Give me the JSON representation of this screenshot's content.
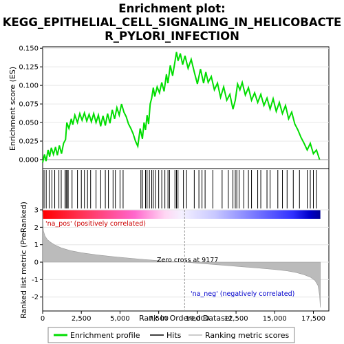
{
  "figure": {
    "title_line1": "Enrichment plot:",
    "title_line2": "KEGG_EPITHELIAL_CELL_SIGNALING_IN_HELICOBACTE",
    "title_line3": "R_PYLORI_INFECTION"
  },
  "colors": {
    "profile": "#00dd00",
    "hits": "#000000",
    "metric_fill": "#bbbbbb",
    "pos_label": "#cc0000",
    "neg_label": "#0000cc",
    "grid": "#e6e6e6"
  },
  "chart_data": [
    {
      "type": "line",
      "name": "enrichment-profile",
      "ylabel": "Enrichment score (ES)",
      "xlim": [
        0,
        18500
      ],
      "ylim": [
        -0.012,
        0.152
      ],
      "yticks": [
        0.0,
        0.025,
        0.05,
        0.075,
        0.1,
        0.125,
        0.15
      ],
      "ytick_labels": [
        "0.000",
        "0.025",
        "0.050",
        "0.075",
        "0.100",
        "0.125",
        "0.150"
      ],
      "x": [
        0,
        120,
        220,
        350,
        450,
        560,
        700,
        830,
        950,
        1080,
        1220,
        1350,
        1480,
        1560,
        1700,
        1850,
        1950,
        2080,
        2250,
        2400,
        2550,
        2700,
        2850,
        3000,
        3150,
        3300,
        3450,
        3600,
        3750,
        3900,
        4050,
        4200,
        4350,
        4500,
        4650,
        4800,
        4950,
        5100,
        5250,
        5400,
        5550,
        5700,
        5850,
        6000,
        6150,
        6300,
        6450,
        6550,
        6650,
        6750,
        6850,
        6950,
        7050,
        7150,
        7250,
        7400,
        7550,
        7700,
        7850,
        8000,
        8100,
        8250,
        8400,
        8550,
        8650,
        8750,
        8900,
        9050,
        9200,
        9400,
        9600,
        9800,
        10000,
        10200,
        10400,
        10550,
        10700,
        10900,
        11100,
        11300,
        11500,
        11700,
        11900,
        12100,
        12300,
        12450,
        12600,
        12750,
        12900,
        13100,
        13300,
        13500,
        13700,
        13900,
        14100,
        14300,
        14500,
        14700,
        14900,
        15100,
        15300,
        15500,
        15700,
        15900,
        16100,
        16300,
        16500,
        16700,
        16900,
        17100,
        17300,
        17500,
        17700,
        17900
      ],
      "values": [
        -0.004,
        0.007,
        -0.002,
        0.013,
        0.004,
        0.016,
        0.007,
        0.017,
        0.006,
        0.019,
        0.008,
        0.022,
        0.027,
        0.05,
        0.042,
        0.055,
        0.047,
        0.06,
        0.05,
        0.062,
        0.053,
        0.063,
        0.052,
        0.061,
        0.051,
        0.062,
        0.05,
        0.06,
        0.045,
        0.059,
        0.046,
        0.062,
        0.049,
        0.067,
        0.055,
        0.07,
        0.06,
        0.075,
        0.064,
        0.058,
        0.048,
        0.042,
        0.035,
        0.025,
        0.018,
        0.042,
        0.028,
        0.05,
        0.04,
        0.06,
        0.048,
        0.075,
        0.083,
        0.097,
        0.085,
        0.098,
        0.09,
        0.104,
        0.092,
        0.115,
        0.103,
        0.127,
        0.113,
        0.132,
        0.145,
        0.133,
        0.143,
        0.128,
        0.14,
        0.123,
        0.135,
        0.118,
        0.102,
        0.122,
        0.103,
        0.118,
        0.104,
        0.112,
        0.094,
        0.103,
        0.084,
        0.098,
        0.08,
        0.088,
        0.068,
        0.08,
        0.102,
        0.094,
        0.104,
        0.087,
        0.097,
        0.08,
        0.09,
        0.077,
        0.088,
        0.073,
        0.083,
        0.068,
        0.082,
        0.065,
        0.077,
        0.062,
        0.073,
        0.055,
        0.064,
        0.048,
        0.04,
        0.03,
        0.022,
        0.013,
        0.022,
        0.008,
        0.013,
        0.0
      ]
    },
    {
      "type": "scatter",
      "name": "hits",
      "x": [
        90,
        230,
        420,
        600,
        780,
        1050,
        1200,
        1450,
        1520,
        1580,
        1650,
        1900,
        2250,
        2500,
        2700,
        2900,
        3100,
        3450,
        3750,
        4050,
        4250,
        4550,
        4700,
        5000,
        5200,
        6350,
        6450,
        6650,
        6750,
        6900,
        7050,
        7150,
        7300,
        7500,
        7700,
        7900,
        8100,
        8200,
        8550,
        8650,
        8750,
        9100,
        9300,
        9800,
        10100,
        10300,
        10500,
        11000,
        11600,
        12000,
        12300,
        12450,
        12550,
        12700,
        13000,
        13300,
        13500,
        13900,
        14100,
        14500,
        14700,
        15200,
        15500,
        15800,
        16200,
        16600,
        17100,
        17300,
        17500,
        17700
      ]
    },
    {
      "type": "area",
      "name": "ranked-list-metric",
      "xlabel": "Rank in Ordered Dataset",
      "ylabel": "Ranked list metric (PreRanked)",
      "xlim": [
        0,
        18500
      ],
      "ylim": [
        -2.8,
        3.0
      ],
      "yticks": [
        -2,
        -1,
        0,
        1,
        2,
        3
      ],
      "xticks": [
        0,
        2500,
        5000,
        7500,
        10000,
        12500,
        15000,
        17500
      ],
      "xtick_labels": [
        "0",
        "2,500",
        "5,000",
        "7,500",
        "10,000",
        "12,500",
        "15,000",
        "17,500"
      ],
      "x": [
        0,
        50,
        150,
        300,
        500,
        800,
        1200,
        1800,
        2500,
        3500,
        4500,
        5500,
        6500,
        7500,
        8500,
        9177,
        10000,
        11000,
        12000,
        13000,
        14000,
        15000,
        15800,
        16400,
        16900,
        17300,
        17600,
        17800,
        17900,
        17950
      ],
      "values": [
        2.9,
        1.8,
        1.5,
        1.3,
        1.15,
        0.98,
        0.82,
        0.66,
        0.54,
        0.42,
        0.32,
        0.24,
        0.16,
        0.09,
        0.03,
        0.0,
        -0.06,
        -0.13,
        -0.2,
        -0.27,
        -0.34,
        -0.42,
        -0.5,
        -0.6,
        -0.72,
        -0.86,
        -1.05,
        -1.35,
        -1.9,
        -2.6
      ],
      "zero_cross_label": "Zero cross at 9177",
      "zero_cross_x": 9177,
      "pos_label": "'na_pos' (positively correlated)",
      "neg_label": "'na_neg' (negatively correlated)"
    }
  ],
  "legend": {
    "items": [
      {
        "label": "Enrichment profile",
        "kind": "profile"
      },
      {
        "label": "Hits",
        "kind": "hits"
      },
      {
        "label": "Ranking metric scores",
        "kind": "metric"
      }
    ]
  }
}
